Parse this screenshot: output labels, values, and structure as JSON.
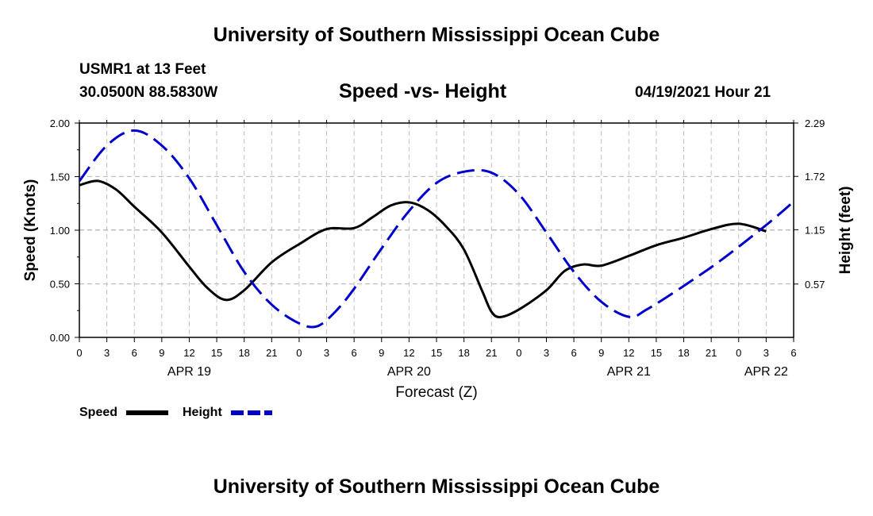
{
  "header": {
    "title": "University of Southern Mississippi Ocean Cube",
    "station": "USMR1 at 13 Feet",
    "coords": "30.0500N  88.5830W",
    "datetime": "04/19/2021 Hour 21"
  },
  "footer": {
    "title": "University of Southern Mississippi Ocean Cube"
  },
  "chart_data": {
    "type": "line",
    "title": "Speed -vs- Height",
    "xlabel": "Forecast (Z)",
    "ylabel_left": "Speed (Knots)",
    "ylabel_right": "Height (feet)",
    "x_range_hours": [
      0,
      78
    ],
    "x_tick_labels": [
      "0",
      "3",
      "6",
      "9",
      "12",
      "15",
      "18",
      "21",
      "0",
      "3",
      "6",
      "9",
      "12",
      "15",
      "18",
      "21",
      "0",
      "3",
      "6",
      "9",
      "12",
      "15",
      "18",
      "21",
      "0",
      "3",
      "6"
    ],
    "date_labels": [
      {
        "hour": 12,
        "label": "APR 19"
      },
      {
        "hour": 36,
        "label": "APR 20"
      },
      {
        "hour": 60,
        "label": "APR 21"
      },
      {
        "hour": 75,
        "label": "APR 22"
      }
    ],
    "y_left": {
      "min": 0,
      "max": 2,
      "ticks": [
        0,
        0.5,
        1.0,
        1.5,
        2.0
      ],
      "tick_labels": [
        "0.00",
        "0.50",
        "1.00",
        "1.50",
        "2.00"
      ]
    },
    "y_right": {
      "min": 0,
      "max": 2.29,
      "ticks": [
        0.57,
        1.15,
        1.72,
        2.29
      ],
      "tick_labels": [
        "0.57",
        "1.15",
        "1.72",
        "2.29"
      ]
    },
    "grid": true,
    "series": [
      {
        "name": "Speed",
        "axis": "left",
        "color": "#000000",
        "dash": "solid",
        "points": [
          [
            0,
            1.42
          ],
          [
            2,
            1.46
          ],
          [
            4,
            1.38
          ],
          [
            6,
            1.22
          ],
          [
            9,
            0.98
          ],
          [
            12,
            0.66
          ],
          [
            14,
            0.46
          ],
          [
            16,
            0.35
          ],
          [
            18,
            0.44
          ],
          [
            21,
            0.7
          ],
          [
            24,
            0.87
          ],
          [
            27,
            1.01
          ],
          [
            30,
            1.02
          ],
          [
            32,
            1.12
          ],
          [
            34,
            1.23
          ],
          [
            36,
            1.26
          ],
          [
            38,
            1.19
          ],
          [
            40,
            1.04
          ],
          [
            42,
            0.82
          ],
          [
            44,
            0.43
          ],
          [
            45,
            0.24
          ],
          [
            46,
            0.19
          ],
          [
            48,
            0.26
          ],
          [
            51,
            0.44
          ],
          [
            53,
            0.62
          ],
          [
            55,
            0.68
          ],
          [
            57,
            0.67
          ],
          [
            60,
            0.76
          ],
          [
            63,
            0.86
          ],
          [
            66,
            0.93
          ],
          [
            69,
            1.01
          ],
          [
            72,
            1.06
          ],
          [
            75,
            0.99
          ]
        ]
      },
      {
        "name": "Height",
        "axis": "right",
        "color": "#0000cc",
        "dash": "dashed",
        "points": [
          [
            0,
            1.67
          ],
          [
            3,
            2.05
          ],
          [
            6,
            2.21
          ],
          [
            9,
            2.05
          ],
          [
            12,
            1.7
          ],
          [
            15,
            1.2
          ],
          [
            18,
            0.7
          ],
          [
            21,
            0.35
          ],
          [
            24,
            0.15
          ],
          [
            26,
            0.12
          ],
          [
            28,
            0.28
          ],
          [
            30,
            0.52
          ],
          [
            33,
            0.95
          ],
          [
            36,
            1.35
          ],
          [
            39,
            1.65
          ],
          [
            42,
            1.77
          ],
          [
            45,
            1.76
          ],
          [
            48,
            1.53
          ],
          [
            51,
            1.12
          ],
          [
            54,
            0.7
          ],
          [
            57,
            0.38
          ],
          [
            60,
            0.22
          ],
          [
            62,
            0.3
          ],
          [
            66,
            0.55
          ],
          [
            70,
            0.82
          ],
          [
            75,
            1.2
          ],
          [
            78,
            1.45
          ]
        ]
      }
    ],
    "legend": [
      {
        "name": "Speed",
        "color": "#000000",
        "dash": "solid"
      },
      {
        "name": "Height",
        "color": "#0000cc",
        "dash": "dashed"
      }
    ]
  }
}
